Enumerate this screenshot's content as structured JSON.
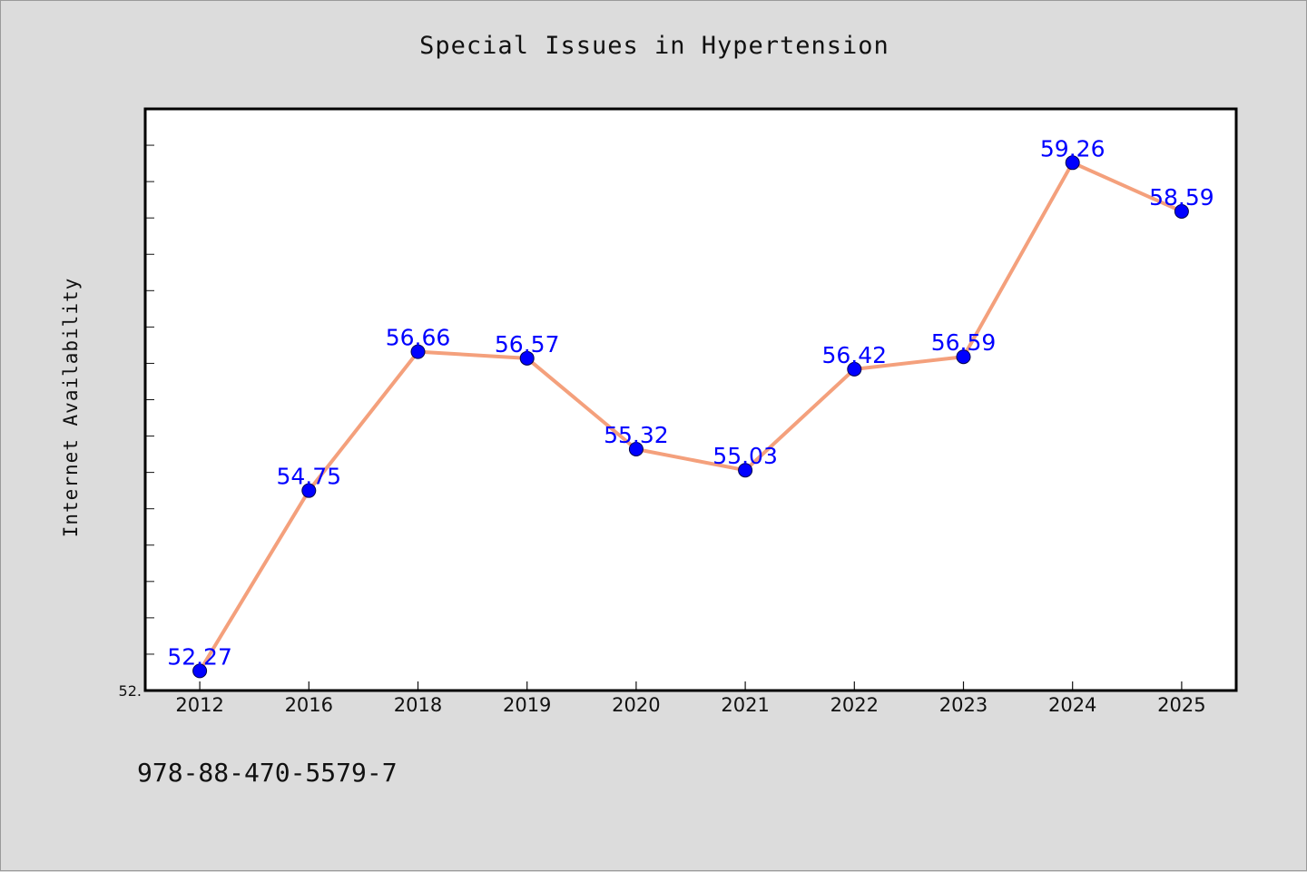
{
  "title": "Special Issues in Hypertension",
  "footer_text": "978-88-470-5579-7",
  "chart_data": {
    "type": "line",
    "title": "Special Issues in Hypertension",
    "xlabel": "",
    "ylabel": "Internet Availability",
    "categories": [
      "2012",
      "2016",
      "2018",
      "2019",
      "2020",
      "2021",
      "2022",
      "2023",
      "2024",
      "2025"
    ],
    "values": [
      52.27,
      54.75,
      56.66,
      56.57,
      55.32,
      55.03,
      56.42,
      56.59,
      59.26,
      58.59
    ],
    "data_labels": [
      "52.27",
      "54.75",
      "56.66",
      "56.57",
      "55.32",
      "55.03",
      "56.42",
      "56.59",
      "59.26",
      "58.59"
    ],
    "ylim": [
      52.0,
      60.0
    ],
    "y_tick_labels": [
      "52."
    ],
    "grid": false,
    "line_color": "#f4a07c",
    "marker_color": "#0000ff",
    "label_color": "#0000ff"
  }
}
